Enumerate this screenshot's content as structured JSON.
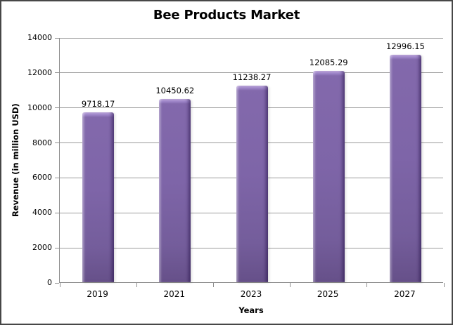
{
  "chart_data": {
    "type": "bar",
    "title": "Bee Products Market",
    "categories": [
      "2019",
      "2021",
      "2023",
      "2025",
      "2027"
    ],
    "values": [
      9718.17,
      10450.62,
      11238.27,
      12085.29,
      12996.15
    ],
    "value_labels": [
      "9718.17",
      "10450.62",
      "11238.27",
      "12085.29",
      "12996.15"
    ],
    "xlabel": "Years",
    "ylabel": "Revenue (in million USD)",
    "ylim": [
      0,
      14000
    ],
    "ytick_step": 2000,
    "yticks": [
      0,
      2000,
      4000,
      6000,
      8000,
      10000,
      12000,
      14000
    ],
    "grid": true,
    "legend": "none",
    "colors": {
      "bar_fill": "#7E65A8",
      "bar_highlight": "#C2ABE2",
      "bar_shadow": "#665089",
      "gridline": "#9B9B9B",
      "axis_line": "#8F8F8F",
      "text": "#000000",
      "background": "#FFFFFF",
      "frame_border": "#474747"
    }
  }
}
